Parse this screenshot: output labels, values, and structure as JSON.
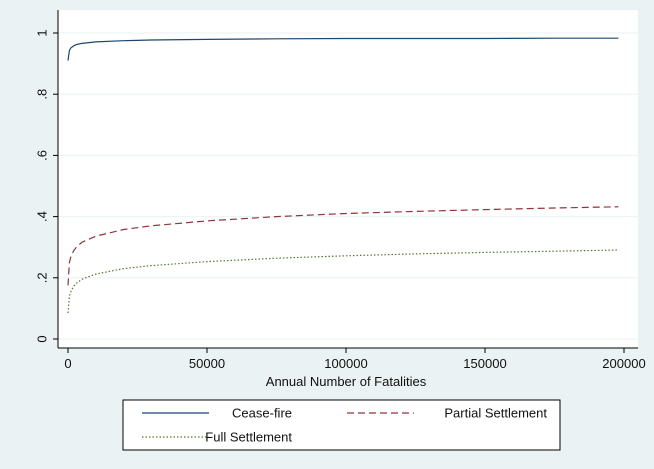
{
  "chart_data": {
    "type": "line",
    "title": "",
    "xlabel": "Annual Number of Fatalities",
    "ylabel": "",
    "xlim": [
      0,
      200000
    ],
    "ylim": [
      0,
      1
    ],
    "x_ticks": [
      0,
      50000,
      100000,
      150000,
      200000
    ],
    "x_tick_labels": [
      "0",
      "50000",
      "100000",
      "150000",
      "200000"
    ],
    "y_ticks": [
      0,
      0.2,
      0.4,
      0.6,
      0.8,
      1
    ],
    "y_tick_labels": [
      "0",
      ".2",
      ".4",
      ".6",
      ".8",
      "1"
    ],
    "grid": "horizontal",
    "legend_position": "bottom",
    "series": [
      {
        "name": "Cease-fire",
        "color": "#1a476f",
        "style": "solid",
        "x": [
          0,
          500,
          1000,
          2000,
          3000,
          5000,
          10000,
          20000,
          30000,
          50000,
          75000,
          100000,
          125000,
          150000,
          175000,
          198000
        ],
        "y": [
          0.91,
          0.943,
          0.951,
          0.958,
          0.962,
          0.966,
          0.971,
          0.975,
          0.977,
          0.979,
          0.981,
          0.982,
          0.982,
          0.982,
          0.983,
          0.983
        ]
      },
      {
        "name": "Partial Settlement",
        "color": "#90353b",
        "style": "dashed",
        "x": [
          0,
          500,
          1000,
          2000,
          3000,
          5000,
          10000,
          20000,
          30000,
          50000,
          75000,
          100000,
          125000,
          150000,
          175000,
          198000
        ],
        "y": [
          0.175,
          0.25,
          0.268,
          0.288,
          0.3,
          0.316,
          0.336,
          0.358,
          0.37,
          0.386,
          0.4,
          0.41,
          0.417,
          0.423,
          0.428,
          0.432
        ]
      },
      {
        "name": "Full Settlement",
        "color": "#55752f",
        "style": "dotted",
        "x": [
          0,
          500,
          1000,
          2000,
          3000,
          5000,
          10000,
          20000,
          30000,
          50000,
          75000,
          100000,
          125000,
          150000,
          175000,
          198000
        ],
        "y": [
          0.085,
          0.14,
          0.155,
          0.172,
          0.182,
          0.195,
          0.212,
          0.23,
          0.24,
          0.253,
          0.264,
          0.272,
          0.278,
          0.283,
          0.287,
          0.291
        ]
      }
    ]
  }
}
